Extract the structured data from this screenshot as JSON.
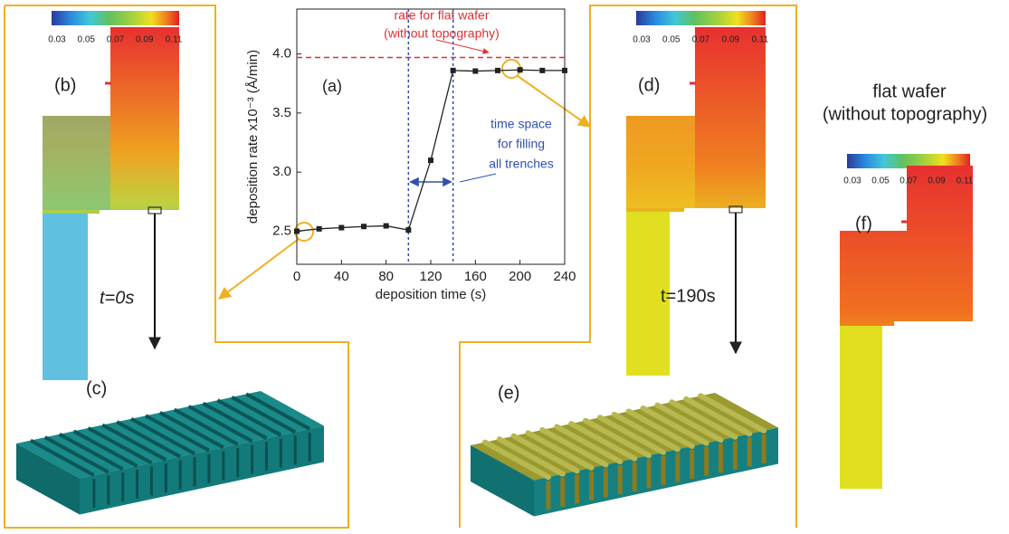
{
  "chart_data": {
    "type": "line",
    "panel_label": "(a)",
    "x_label": "deposition time (s)",
    "y_label": "deposition rate x10⁻³ (Å/min)",
    "x": [
      0,
      20,
      40,
      60,
      80,
      100,
      120,
      140,
      160,
      180,
      200,
      220,
      240
    ],
    "series": [
      {
        "color": "#222222",
        "values": [
          2.5,
          2.52,
          2.53,
          2.54,
          2.545,
          2.51,
          3.1,
          3.86,
          3.855,
          3.86,
          3.865,
          3.86,
          3.86
        ]
      }
    ],
    "xlim": [
      0,
      240
    ],
    "xticks": [
      0,
      40,
      80,
      120,
      160,
      200,
      240
    ],
    "ylim": [
      2.22,
      4.38
    ],
    "yticks": [
      {
        "value": 2.5,
        "label": "2.5"
      },
      {
        "value": 3.0,
        "label": "3.0"
      },
      {
        "value": 3.5,
        "label": "3.5"
      },
      {
        "value": 4.0,
        "label": "4.0"
      }
    ],
    "flat_rate": 3.97,
    "flat_rate_color": "#e03030",
    "flat_rate_label": [
      "rate for flat wafer",
      "(without topography)"
    ],
    "interval": [
      100,
      140
    ],
    "interval_color": "#3050b0",
    "interval_label": [
      "time space",
      "for filling",
      "all trenches"
    ]
  },
  "figure": {
    "colorbar_ticks": [
      "0.03",
      "0.05",
      "0.07",
      "0.09",
      "0.11"
    ],
    "panel_b": "(b)",
    "panel_c": "(c)",
    "panel_d": "(d)",
    "panel_e": "(e)",
    "panel_f": "(f)",
    "time_left": "t=0s",
    "time_right": "t=190s",
    "flat_title": [
      "flat wafer",
      "(without topography)"
    ]
  }
}
